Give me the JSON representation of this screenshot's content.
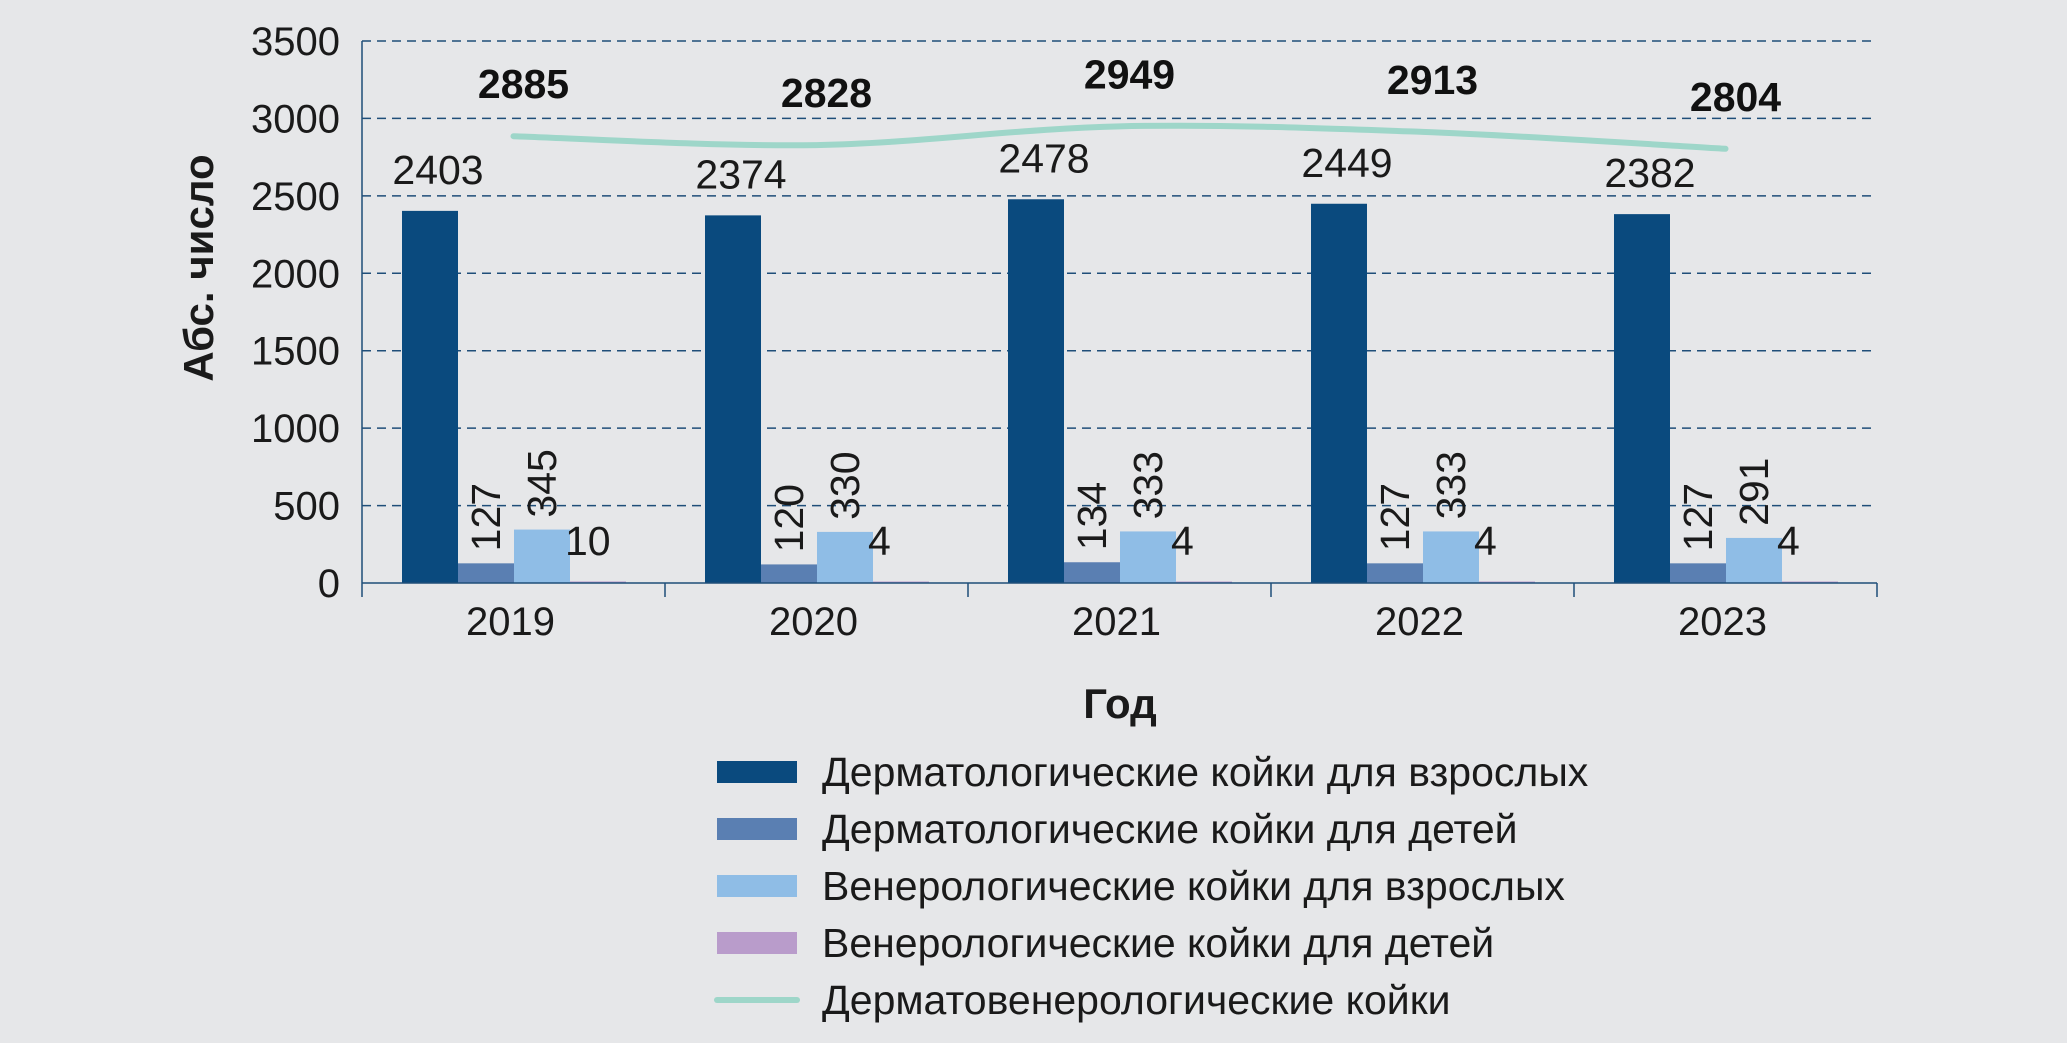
{
  "chart_data": {
    "type": "bar",
    "categories": [
      "2019",
      "2020",
      "2021",
      "2022",
      "2023"
    ],
    "series": [
      {
        "name": "Дерматологические койки для взрослых",
        "type": "bar",
        "color": "#0a4a7e",
        "values": [
          2403,
          2374,
          2478,
          2449,
          2382
        ]
      },
      {
        "name": "Дерматологические койки для детей",
        "type": "bar",
        "color": "#5a7fb2",
        "values": [
          127,
          120,
          134,
          127,
          127
        ]
      },
      {
        "name": "Венерологические койки для взрослых",
        "type": "bar",
        "color": "#8fbde6",
        "values": [
          345,
          330,
          333,
          333,
          291
        ]
      },
      {
        "name": "Венерологические койки для детей",
        "type": "bar",
        "color": "#b99ccb",
        "values": [
          10,
          4,
          4,
          4,
          4
        ]
      },
      {
        "name": "Дерматовенерологические койки",
        "type": "line",
        "color": "#9ed6c9",
        "values": [
          2885,
          2828,
          2949,
          2913,
          2804
        ]
      }
    ],
    "xlabel": "Год",
    "ylabel": "Абс. число",
    "ylim": [
      0,
      3500
    ],
    "yticks": [
      0,
      500,
      1000,
      1500,
      2000,
      2500,
      3000,
      3500
    ],
    "grid": true,
    "legend": "bottom"
  }
}
